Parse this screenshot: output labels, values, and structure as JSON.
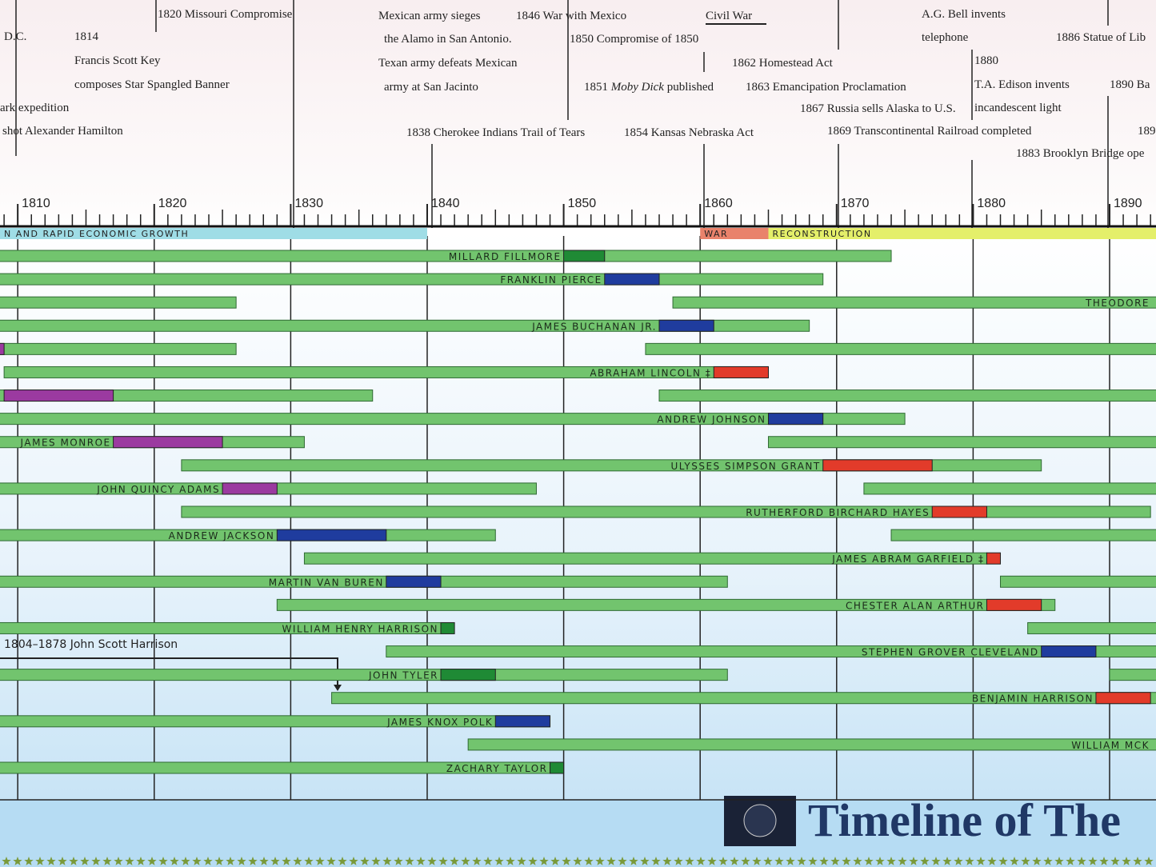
{
  "title": "Timeline of The",
  "axis": {
    "xlim": [
      1808.7,
      1893.4
    ],
    "ticks": [
      1810,
      1820,
      1830,
      1840,
      1850,
      1860,
      1870,
      1880,
      1890
    ]
  },
  "eras": [
    {
      "label": "N AND RAPID ECONOMIC GROWTH",
      "start": 1808.7,
      "end": 1840,
      "color": "#9fdde6"
    },
    {
      "label": "WAR",
      "start": 1860,
      "end": 1865,
      "color": "#e9826b"
    },
    {
      "label": "RECONSTRUCTION",
      "start": 1865,
      "end": 1893.4,
      "color": "#e4ef6a"
    }
  ],
  "events": {
    "e1": "D.C.",
    "e2": "1814",
    "e3": "Francis Scott Key",
    "e4": "composes Star Spangled Banner",
    "e5": "ark expedition",
    "e6": "shot Alexander Hamilton",
    "e7": "1820 Missouri Compromise",
    "e8": "Mexican army sieges",
    "e9": "the Alamo in San Antonio.",
    "e10": "Texan army defeats Mexican",
    "e11": "army at San Jacinto",
    "e12": "1838 Cherokee Indians Trail of Tears",
    "e13": "1846 War with Mexico",
    "e14": "1850 Compromise of 1850",
    "e15a": "1851",
    "e15b": "Moby Dick",
    "e15c": "published",
    "e16": "1854 Kansas Nebraska Act",
    "e17": "Civil War",
    "e18": "1862 Homestead Act",
    "e19": "1863 Emancipation Proclamation",
    "e20": "1867 Russia sells Alaska to U.S.",
    "e21": "1869 Transcontinental Railroad completed",
    "e22": "A.G. Bell invents",
    "e23": "telephone",
    "e24": "1880",
    "e25": "T.A. Edison invents",
    "e26": "incandescent light",
    "e27": "1883 Brooklyn Bridge ope",
    "e28": "1886 Statue of Lib",
    "e29": "1890 Ba",
    "e30": "189"
  },
  "annotation": "1804–1878 John Scott Harrison",
  "rows": [
    [
      {
        "name": "Millard Fillmore",
        "born": 1800,
        "died": 1874,
        "term_start": 1850,
        "term_end": 1853,
        "term_color": "#1f8a35"
      }
    ],
    [
      {
        "name": "Franklin Pierce",
        "born": 1804,
        "died": 1869,
        "term_start": 1853,
        "term_end": 1857,
        "term_color": "#1f3c9e"
      }
    ],
    [
      {
        "born": 1800,
        "died": 1826
      },
      {
        "name": "Theodore",
        "born": 1858,
        "died": 1919
      }
    ],
    [
      {
        "name": "James Buchanan Jr.",
        "born": 1791,
        "died": 1868,
        "term_start": 1857,
        "term_end": 1861,
        "term_color": "#1f3c9e"
      }
    ],
    [
      {
        "born": 1743,
        "died": 1826,
        "term_start": 1801,
        "term_end": 1809,
        "term_color": "#9b3aa0"
      },
      {
        "born": 1856,
        "died": 1924
      }
    ],
    [
      {
        "name": "Abraham Lincoln ‡",
        "born": 1809,
        "died": 1865,
        "term_start": 1861,
        "term_end": 1865,
        "term_color": "#e23b2a"
      }
    ],
    [
      {
        "born": 1751,
        "died": 1836,
        "term_start": 1809,
        "term_end": 1817,
        "term_color": "#9b3aa0"
      },
      {
        "born": 1857,
        "died": 1930
      }
    ],
    [
      {
        "name": "Andrew Johnson",
        "born": 1808,
        "died": 1875,
        "term_start": 1865,
        "term_end": 1869,
        "term_color": "#1f3c9e"
      }
    ],
    [
      {
        "name": "James Monroe",
        "born": 1758,
        "died": 1831,
        "term_start": 1817,
        "term_end": 1825,
        "term_color": "#9b3aa0"
      },
      {
        "born": 1865,
        "died": 1923
      }
    ],
    [
      {
        "name": "Ulysses Simpson Grant",
        "born": 1822,
        "died": 1885,
        "term_start": 1869,
        "term_end": 1877,
        "term_color": "#e23b2a"
      }
    ],
    [
      {
        "name": "John Quincy Adams",
        "born": 1767,
        "died": 1848,
        "term_start": 1825,
        "term_end": 1829,
        "term_color": "#9b3aa0"
      },
      {
        "born": 1872,
        "died": 1933
      }
    ],
    [
      {
        "name": "Rutherford Birchard Hayes",
        "born": 1822,
        "died": 1893,
        "term_start": 1877,
        "term_end": 1881,
        "term_color": "#e23b2a"
      }
    ],
    [
      {
        "name": "Andrew Jackson",
        "born": 1767,
        "died": 1845,
        "term_start": 1829,
        "term_end": 1837,
        "term_color": "#1f3c9e"
      },
      {
        "born": 1874,
        "died": 1964
      }
    ],
    [
      {
        "name": "James Abram Garfield ‡",
        "born": 1831,
        "died": 1881,
        "term_start": 1881,
        "term_end": 1882,
        "term_color": "#e23b2a"
      }
    ],
    [
      {
        "name": "Martin Van Buren",
        "born": 1782,
        "died": 1862,
        "term_start": 1837,
        "term_end": 1841,
        "term_color": "#1f3c9e"
      },
      {
        "born": 1882,
        "died": 1945
      }
    ],
    [
      {
        "name": "Chester Alan Arthur",
        "born": 1829,
        "died": 1886,
        "term_start": 1881,
        "term_end": 1885,
        "term_color": "#e23b2a"
      }
    ],
    [
      {
        "name": "William Henry Harrison",
        "born": 1773,
        "died": 1841,
        "term_start": 1841,
        "term_end": 1842,
        "term_color": "#1f8a35"
      },
      {
        "born": 1884,
        "died": 1972
      }
    ],
    [
      {
        "name": "Stephen Grover Cleveland",
        "born": 1837,
        "died": 1908,
        "term_start": 1885,
        "term_end": 1889,
        "term_color": "#1f3c9e"
      }
    ],
    [
      {
        "name": "John Tyler",
        "born": 1790,
        "died": 1862,
        "term_start": 1841,
        "term_end": 1845,
        "term_color": "#1f8a35"
      },
      {
        "born": 1890,
        "died": 1969
      }
    ],
    [
      {
        "name": "Benjamin Harrison",
        "born": 1833,
        "died": 1901,
        "term_start": 1889,
        "term_end": 1893,
        "term_color": "#e23b2a"
      }
    ],
    [
      {
        "name": "James Knox Polk",
        "born": 1795,
        "died": 1849,
        "term_start": 1845,
        "term_end": 1849,
        "term_color": "#1f3c9e"
      }
    ],
    [
      {
        "name": "William McK",
        "born": 1843,
        "died": 1901
      }
    ],
    [
      {
        "name": "Zachary Taylor",
        "born": 1784,
        "died": 1850,
        "term_start": 1849,
        "term_end": 1850,
        "term_color": "#1f8a35"
      }
    ]
  ]
}
